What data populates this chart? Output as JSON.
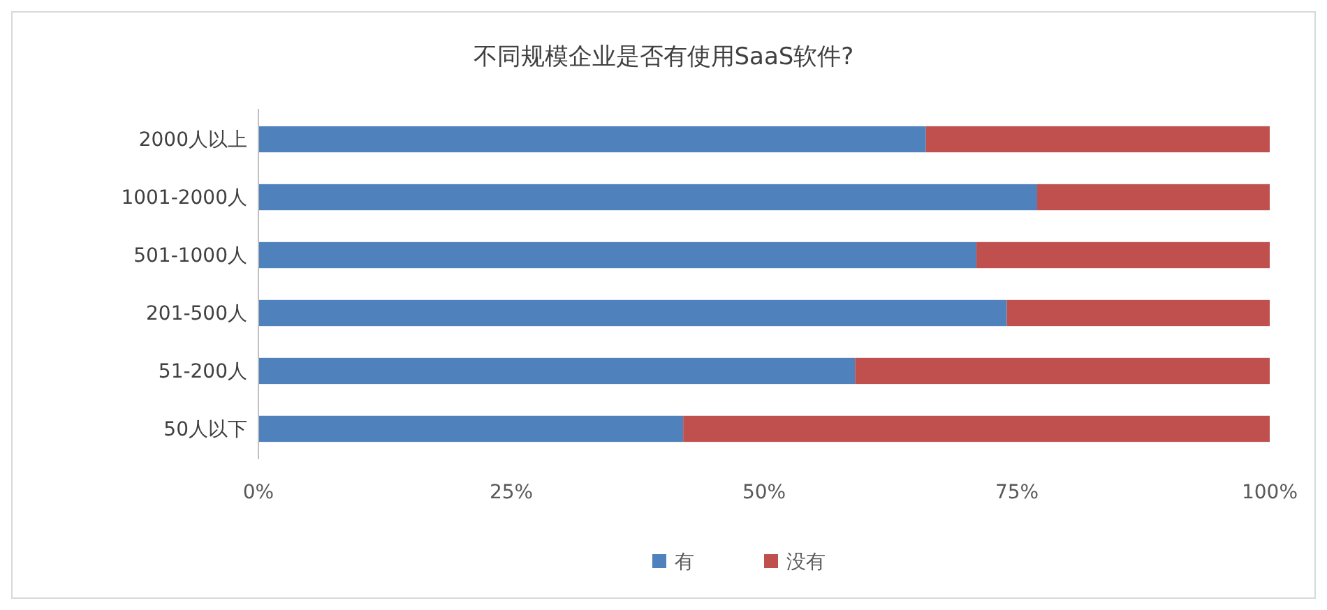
{
  "chart_data": {
    "type": "bar",
    "title": "不同规模企业是否有使用SaaS软件?",
    "orientation": "horizontal",
    "stacked": true,
    "categories": [
      "2000人以上",
      "1001-2000人",
      "501-1000人",
      "201-500人",
      "51-200人",
      "50人以下"
    ],
    "series": [
      {
        "name": "有",
        "color": "#4f81bd",
        "values": [
          66,
          77,
          71,
          74,
          59,
          42
        ]
      },
      {
        "name": "没有",
        "color": "#c0504d",
        "values": [
          34,
          23,
          29,
          26,
          41,
          58
        ]
      }
    ],
    "xlim": [
      0,
      100
    ],
    "xticks": [
      {
        "value": 0,
        "label": "0%"
      },
      {
        "value": 25,
        "label": "25%"
      },
      {
        "value": 50,
        "label": "50%"
      },
      {
        "value": 75,
        "label": "75%"
      },
      {
        "value": 100,
        "label": "100%"
      }
    ],
    "grid": false,
    "legend": "bottom"
  }
}
